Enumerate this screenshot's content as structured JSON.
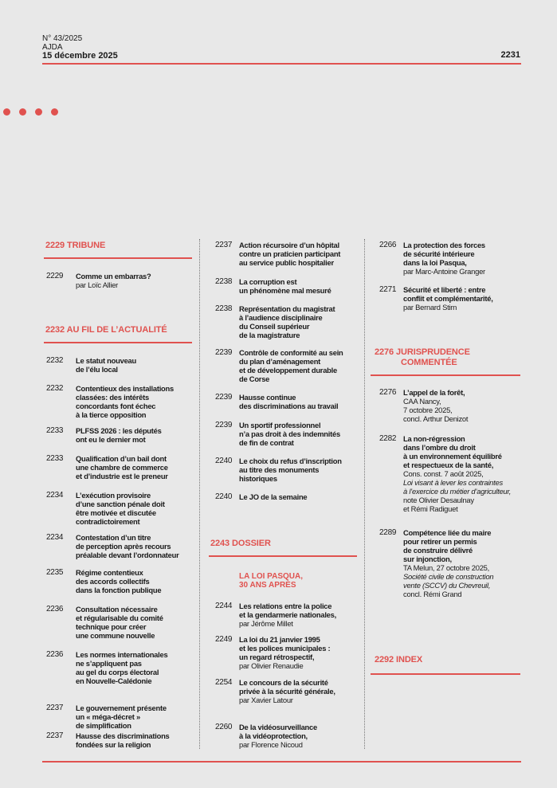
{
  "header": {
    "issue": "N° 43/2025",
    "journal": "AJDA",
    "date": "15 décembre 2025",
    "page": "2231"
  },
  "colors": {
    "accent": "#e0524f",
    "background": "#e8e8e8"
  },
  "sections": [
    {
      "title": [
        "2229 TRIBUNE"
      ]
    },
    {
      "title": [
        "2232 AU FIL DE L’ACTUALITÉ"
      ]
    },
    {
      "title": [
        "2243 DOSSIER"
      ],
      "subheading": [
        "LA LOI PASQUA,",
        "30 ANS APRÈS"
      ]
    },
    {
      "title": [
        "2276 JURISPRUDENCE",
        "COMMENTÉE"
      ]
    },
    {
      "title": [
        "2292 INDEX"
      ]
    }
  ],
  "entries": [
    {
      "page": "2229",
      "lines": [
        {
          "t": "Comme un embarras?",
          "s": "b"
        },
        {
          "t": "par Loïc Allier",
          "s": "n"
        }
      ]
    },
    {
      "page": "2232",
      "lines": [
        {
          "t": "Le statut nouveau",
          "s": "b"
        },
        {
          "t": "de l’élu local",
          "s": "b"
        }
      ]
    },
    {
      "page": "2232",
      "lines": [
        {
          "t": "Contentieux des installations",
          "s": "b"
        },
        {
          "t": "classées: des intérêts",
          "s": "b"
        },
        {
          "t": "concordants font échec",
          "s": "b"
        },
        {
          "t": "à la tierce opposition",
          "s": "b"
        }
      ]
    },
    {
      "page": "2233",
      "lines": [
        {
          "t": "PLFSS 2026 : les députés",
          "s": "b"
        },
        {
          "t": "ont eu le dernier mot",
          "s": "b"
        }
      ]
    },
    {
      "page": "2233",
      "lines": [
        {
          "t": "Qualification d’un bail dont",
          "s": "b"
        },
        {
          "t": "une chambre de commerce",
          "s": "b"
        },
        {
          "t": "et d’industrie est le preneur",
          "s": "b"
        }
      ]
    },
    {
      "page": "2234",
      "lines": [
        {
          "t": "L’exécution provisoire",
          "s": "b"
        },
        {
          "t": "d’une sanction pénale doit",
          "s": "b"
        },
        {
          "t": "être motivée et discutée",
          "s": "b"
        },
        {
          "t": "contradictoirement",
          "s": "b"
        }
      ]
    },
    {
      "page": "2234",
      "lines": [
        {
          "t": "Contestation d’un titre",
          "s": "b"
        },
        {
          "t": "de perception après recours",
          "s": "b"
        },
        {
          "t": "préalable devant l’ordonnateur",
          "s": "b"
        }
      ]
    },
    {
      "page": "2235",
      "lines": [
        {
          "t": "Régime contentieux",
          "s": "b"
        },
        {
          "t": "des accords collectifs",
          "s": "b"
        },
        {
          "t": "dans la fonction publique",
          "s": "b"
        }
      ]
    },
    {
      "page": "2236",
      "lines": [
        {
          "t": "Consultation nécessaire",
          "s": "b"
        },
        {
          "t": "et régularisable du comité",
          "s": "b"
        },
        {
          "t": "technique pour créer",
          "s": "b"
        },
        {
          "t": "une commune nouvelle",
          "s": "b"
        }
      ]
    },
    {
      "page": "2236",
      "lines": [
        {
          "t": "Les normes internationales",
          "s": "b"
        },
        {
          "t": "ne s’appliquent pas",
          "s": "b"
        },
        {
          "t": "au gel du corps électoral",
          "s": "b"
        },
        {
          "t": "en Nouvelle-Calédonie",
          "s": "b"
        }
      ]
    },
    {
      "page": "2237",
      "lines": [
        {
          "t": "Le gouvernement présente",
          "s": "b"
        },
        {
          "t": "un « méga-décret »",
          "s": "b"
        },
        {
          "t": "de simplification",
          "s": "b"
        }
      ]
    },
    {
      "page": "2237",
      "lines": [
        {
          "t": "Hausse des discriminations",
          "s": "b"
        },
        {
          "t": "fondées sur la religion",
          "s": "b"
        }
      ]
    },
    {
      "page": "2237",
      "lines": [
        {
          "t": "Action récursoire d’un hôpital",
          "s": "b"
        },
        {
          "t": "contre un praticien participant",
          "s": "b"
        },
        {
          "t": "au service public hospitalier",
          "s": "b"
        }
      ]
    },
    {
      "page": "2238",
      "lines": [
        {
          "t": "La corruption est",
          "s": "b"
        },
        {
          "t": "un phénomène mal mesuré",
          "s": "b"
        }
      ]
    },
    {
      "page": "2238",
      "lines": [
        {
          "t": "Représentation du magistrat",
          "s": "b"
        },
        {
          "t": "à l’audience disciplinaire",
          "s": "b"
        },
        {
          "t": "du Conseil supérieur",
          "s": "b"
        },
        {
          "t": "de la magistrature",
          "s": "b"
        }
      ]
    },
    {
      "page": "2239",
      "lines": [
        {
          "t": "Contrôle de conformité au sein",
          "s": "b"
        },
        {
          "t": "du plan d’aménagement",
          "s": "b"
        },
        {
          "t": "et de développement durable",
          "s": "b"
        },
        {
          "t": "de Corse",
          "s": "b"
        }
      ]
    },
    {
      "page": "2239",
      "lines": [
        {
          "t": "Hausse continue",
          "s": "b"
        },
        {
          "t": "des discriminations au travail",
          "s": "b"
        }
      ]
    },
    {
      "page": "2239",
      "lines": [
        {
          "t": "Un sportif professionnel",
          "s": "b"
        },
        {
          "t": "n’a pas droit à des indemnités",
          "s": "b"
        },
        {
          "t": "de fin de contrat",
          "s": "b"
        }
      ]
    },
    {
      "page": "2240",
      "lines": [
        {
          "t": "Le choix du refus d’inscription",
          "s": "b"
        },
        {
          "t": "au titre des monuments",
          "s": "b"
        },
        {
          "t": "historiques",
          "s": "b"
        }
      ]
    },
    {
      "page": "2240",
      "lines": [
        {
          "t": "Le JO de la semaine",
          "s": "b"
        }
      ]
    },
    {
      "page": "2244",
      "lines": [
        {
          "t": "Les relations entre la police",
          "s": "b"
        },
        {
          "t": "et la gendarmerie nationales,",
          "s": "b"
        },
        {
          "t": "par Jérôme Millet",
          "s": "n"
        }
      ]
    },
    {
      "page": "2249",
      "lines": [
        {
          "t": "La loi du 21 janvier 1995",
          "s": "b"
        },
        {
          "t": "et les polices municipales :",
          "s": "b"
        },
        {
          "t": "un regard rétrospectif,",
          "s": "b"
        },
        {
          "t": "par Olivier Renaudie",
          "s": "n"
        }
      ]
    },
    {
      "page": "2254",
      "lines": [
        {
          "t": "Le concours de la sécurité",
          "s": "b"
        },
        {
          "t": "privée à la sécurité générale,",
          "s": "b"
        },
        {
          "t": "par Xavier Latour",
          "s": "n"
        }
      ]
    },
    {
      "page": "2260",
      "lines": [
        {
          "t": "De la vidéosurveillance",
          "s": "b"
        },
        {
          "t": "à la vidéoprotection,",
          "s": "b"
        },
        {
          "t": "par Florence Nicoud",
          "s": "n"
        }
      ]
    },
    {
      "page": "2266",
      "lines": [
        {
          "t": "La protection des forces",
          "s": "b"
        },
        {
          "t": "de sécurité intérieure",
          "s": "b"
        },
        {
          "t": "dans la loi Pasqua,",
          "s": "b"
        },
        {
          "t": "par Marc-Antoine Granger",
          "s": "n"
        }
      ]
    },
    {
      "page": "2271",
      "lines": [
        {
          "t": "Sécurité et liberté : entre",
          "s": "b"
        },
        {
          "t": "conflit et complémentarité,",
          "s": "b"
        },
        {
          "t": "par Bernard Stirn",
          "s": "n"
        }
      ]
    },
    {
      "page": "2276",
      "lines": [
        {
          "t": "L’appel de la forêt,",
          "s": "b"
        },
        {
          "t": "CAA Nancy,",
          "s": "n"
        },
        {
          "t": "7 octobre 2025,",
          "s": "n"
        },
        {
          "t": "concl. Arthur Denizot",
          "s": "n"
        }
      ]
    },
    {
      "page": "2282",
      "lines": [
        {
          "t": "La non-régression",
          "s": "b"
        },
        {
          "t": "dans l’ombre du droit",
          "s": "b"
        },
        {
          "t": "à un environnement équilibré",
          "s": "b"
        },
        {
          "t": "et respectueux de la santé,",
          "s": "b"
        },
        {
          "t": "Cons. const. 7 août 2025,",
          "s": "n"
        },
        {
          "t": "Loi visant à lever les contraintes",
          "s": "i"
        },
        {
          "t": "à l’exercice du métier d’agriculteur,",
          "s": "i"
        },
        {
          "t": "note Olivier Desaulnay",
          "s": "n"
        },
        {
          "t": "et Rémi Radiguet",
          "s": "n"
        }
      ]
    },
    {
      "page": "2289",
      "lines": [
        {
          "t": "Compétence liée du maire",
          "s": "b"
        },
        {
          "t": "pour retirer un permis",
          "s": "b"
        },
        {
          "t": "de construire délivré",
          "s": "b"
        },
        {
          "t": "sur injonction,",
          "s": "b"
        },
        {
          "t": "TA Melun, 27 octobre 2025,",
          "s": "n"
        },
        {
          "t": "Société civile de construction",
          "s": "i"
        },
        {
          "t": "vente (SCCV) du Chevreuil,",
          "s": "i"
        },
        {
          "t": "concl. Rémi Grand",
          "s": "n"
        }
      ]
    }
  ]
}
